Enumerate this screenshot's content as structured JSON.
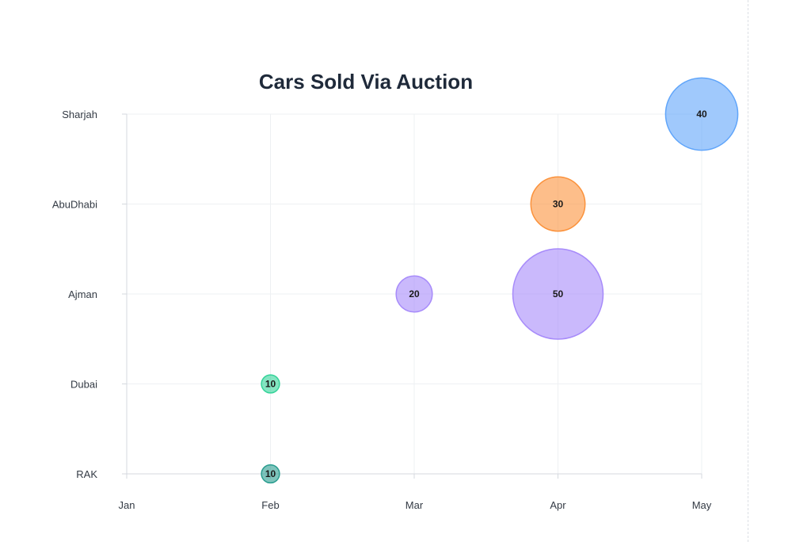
{
  "chart_data": {
    "type": "scatter",
    "subtype": "bubble",
    "title": "Cars Sold Via Auction",
    "xlabel": "",
    "ylabel": "",
    "x_categories": [
      "Jan",
      "Feb",
      "Mar",
      "Apr",
      "May"
    ],
    "y_categories": [
      "RAK",
      "Dubai",
      "Ajman",
      "AbuDhabi",
      "Sharjah"
    ],
    "grid": true,
    "legend": "none",
    "points": [
      {
        "x": "Feb",
        "y": "RAK",
        "value": 10,
        "label": "10",
        "color": "#2a9d8f"
      },
      {
        "x": "Feb",
        "y": "Dubai",
        "value": 10,
        "label": "10",
        "color": "#34d399"
      },
      {
        "x": "Mar",
        "y": "Ajman",
        "value": 20,
        "label": "20",
        "color": "#a78bfa"
      },
      {
        "x": "Apr",
        "y": "Ajman",
        "value": 50,
        "label": "50",
        "color": "#a78bfa"
      },
      {
        "x": "Apr",
        "y": "AbuDhabi",
        "value": 30,
        "label": "30",
        "color": "#fb923c"
      },
      {
        "x": "May",
        "y": "Sharjah",
        "value": 40,
        "label": "40",
        "color": "#60a5fa"
      }
    ]
  }
}
